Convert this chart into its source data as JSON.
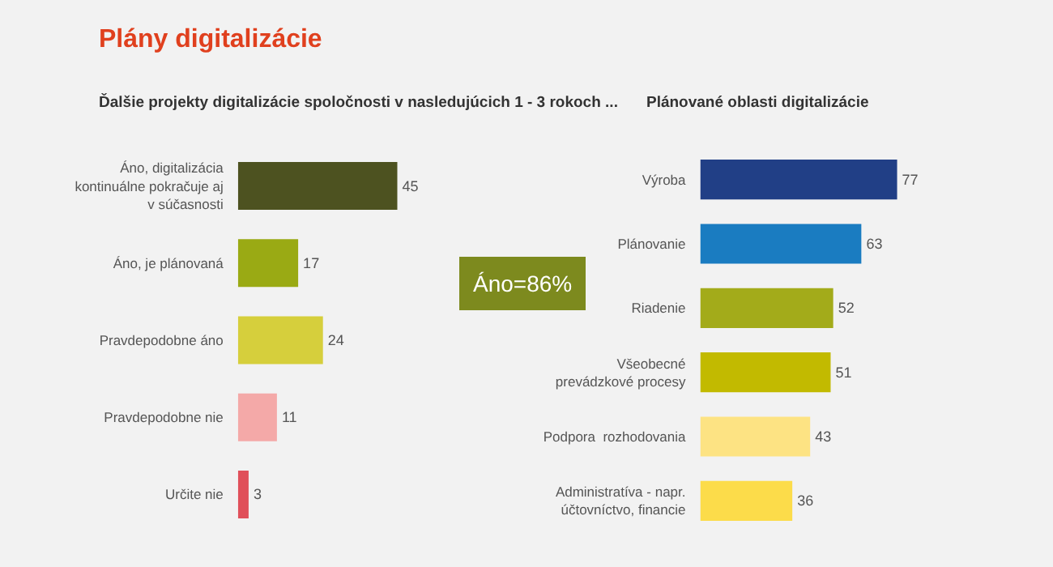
{
  "chart_data": [
    {
      "type": "bar",
      "orientation": "horizontal",
      "title": "Plány digitalizácie",
      "subtitle": "Ďalšie projekty digitalizácie spoločnosti v nasledujúcich 1 - 3 rokoch ...",
      "categories": [
        "Áno, digitalizácia\nkontinuálne pokračuje aj\nv súčasnosti",
        "Áno, je plánovaná",
        "Pravdepodobne áno",
        "Pravdepodobne nie",
        "Určite nie"
      ],
      "values": [
        45,
        17,
        24,
        11,
        3
      ],
      "colors": [
        "#4d5220",
        "#9aaa14",
        "#d6cf3c",
        "#f4a9a8",
        "#e0505a"
      ],
      "data_labels": true,
      "annotations": [
        "Áno=86%"
      ]
    },
    {
      "type": "bar",
      "orientation": "horizontal",
      "title": "Plánované oblasti digitalizácie",
      "categories": [
        "Výroba",
        "Plánovanie",
        "Riadenie",
        "Všeobecné\nprevádzkové procesy",
        "Podpora  rozhodovania",
        "Administratíva - napr.\núčtovníctvo, financie"
      ],
      "values": [
        77,
        63,
        52,
        51,
        43,
        36
      ],
      "colors": [
        "#213f86",
        "#1a7cc1",
        "#a3ab1a",
        "#c2ba00",
        "#fde383",
        "#fcdc4a"
      ],
      "data_labels": true
    }
  ]
}
